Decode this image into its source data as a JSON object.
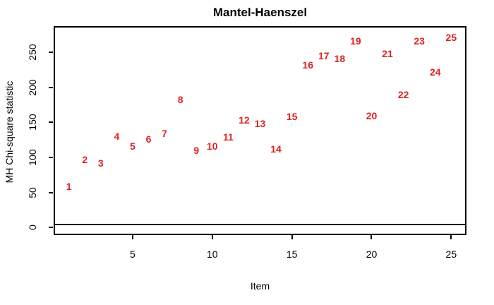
{
  "chart_data": {
    "type": "scatter",
    "title": "Mantel-Haenszel",
    "xlabel": "Item",
    "ylabel": "MH Chi-square statistic",
    "point_style": "each data point drawn as its red item number",
    "x": [
      1,
      2,
      3,
      4,
      5,
      6,
      7,
      8,
      9,
      10,
      11,
      12,
      13,
      14,
      15,
      16,
      17,
      18,
      19,
      20,
      21,
      22,
      23,
      24,
      25
    ],
    "point_labels": [
      "1",
      "2",
      "3",
      "4",
      "5",
      "6",
      "7",
      "8",
      "9",
      "10",
      "11",
      "12",
      "13",
      "14",
      "15",
      "16",
      "17",
      "18",
      "19",
      "20",
      "21",
      "22",
      "23",
      "24",
      "25"
    ],
    "values": [
      59,
      97,
      92,
      130,
      116,
      126,
      134,
      183,
      110,
      116,
      129,
      153,
      148,
      112,
      158,
      232,
      245,
      241,
      266,
      159,
      248,
      190,
      266,
      222,
      271
    ],
    "x_ticks": [
      5,
      10,
      15,
      20,
      25
    ],
    "y_ticks": [
      0,
      50,
      100,
      150,
      200,
      250
    ],
    "xlim": [
      0.04,
      25.96
    ],
    "ylim": [
      -10.8,
      287.3
    ],
    "reference_line_y": 3.84,
    "grid": false,
    "legend": false,
    "colors": {
      "points": "#dd2222",
      "axis": "#000000",
      "reference_line": "#000000",
      "background": "#ffffff"
    }
  }
}
